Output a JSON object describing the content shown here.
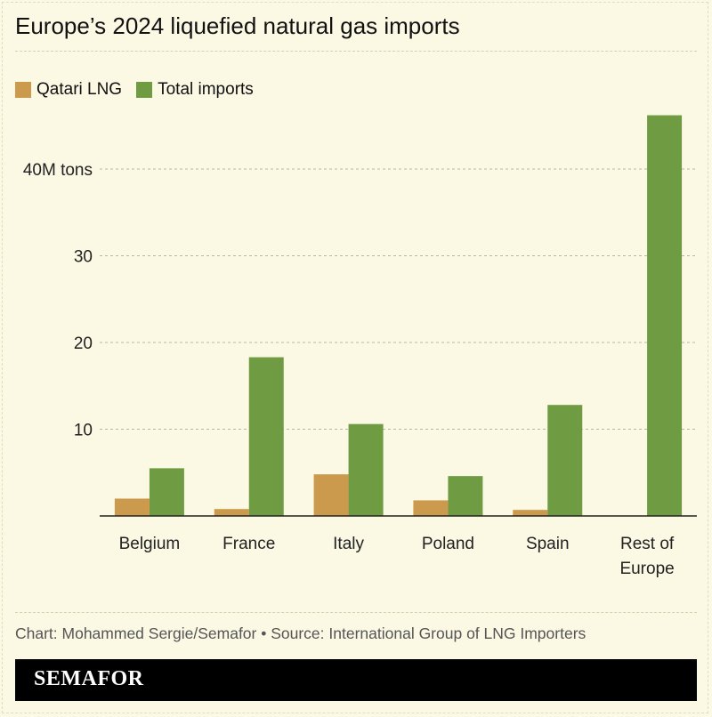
{
  "header": {
    "title": "Europe’s 2024 liquefied natural gas imports"
  },
  "legend": [
    {
      "label": "Qatari LNG",
      "color": "#cc9a4c"
    },
    {
      "label": "Total imports",
      "color": "#6f9c43"
    }
  ],
  "chart_data": {
    "type": "bar",
    "title": "Europe’s 2024 liquefied natural gas imports",
    "xlabel": "",
    "ylabel": "",
    "categories": [
      [
        "Belgium"
      ],
      [
        "France"
      ],
      [
        "Italy"
      ],
      [
        "Poland"
      ],
      [
        "Spain"
      ],
      [
        "Rest of",
        "Europe"
      ]
    ],
    "series": [
      {
        "name": "Qatari LNG",
        "color": "#cc9a4c",
        "values": [
          2.0,
          0.8,
          4.8,
          1.8,
          0.7,
          0
        ]
      },
      {
        "name": "Total imports",
        "color": "#6f9c43",
        "values": [
          5.5,
          18.3,
          10.6,
          4.6,
          12.8,
          46.2
        ]
      }
    ],
    "ylim": [
      0,
      48
    ],
    "yticks": [
      {
        "value": 10,
        "label": "10"
      },
      {
        "value": 20,
        "label": "20"
      },
      {
        "value": 30,
        "label": "30"
      },
      {
        "value": 40,
        "label": "40M tons"
      }
    ],
    "grid": true,
    "legend_position": "top-left"
  },
  "footer": {
    "source": "Chart: Mohammed Sergie/Semafor • Source: International Group of LNG Importers",
    "brand": "SEMAFOR"
  }
}
